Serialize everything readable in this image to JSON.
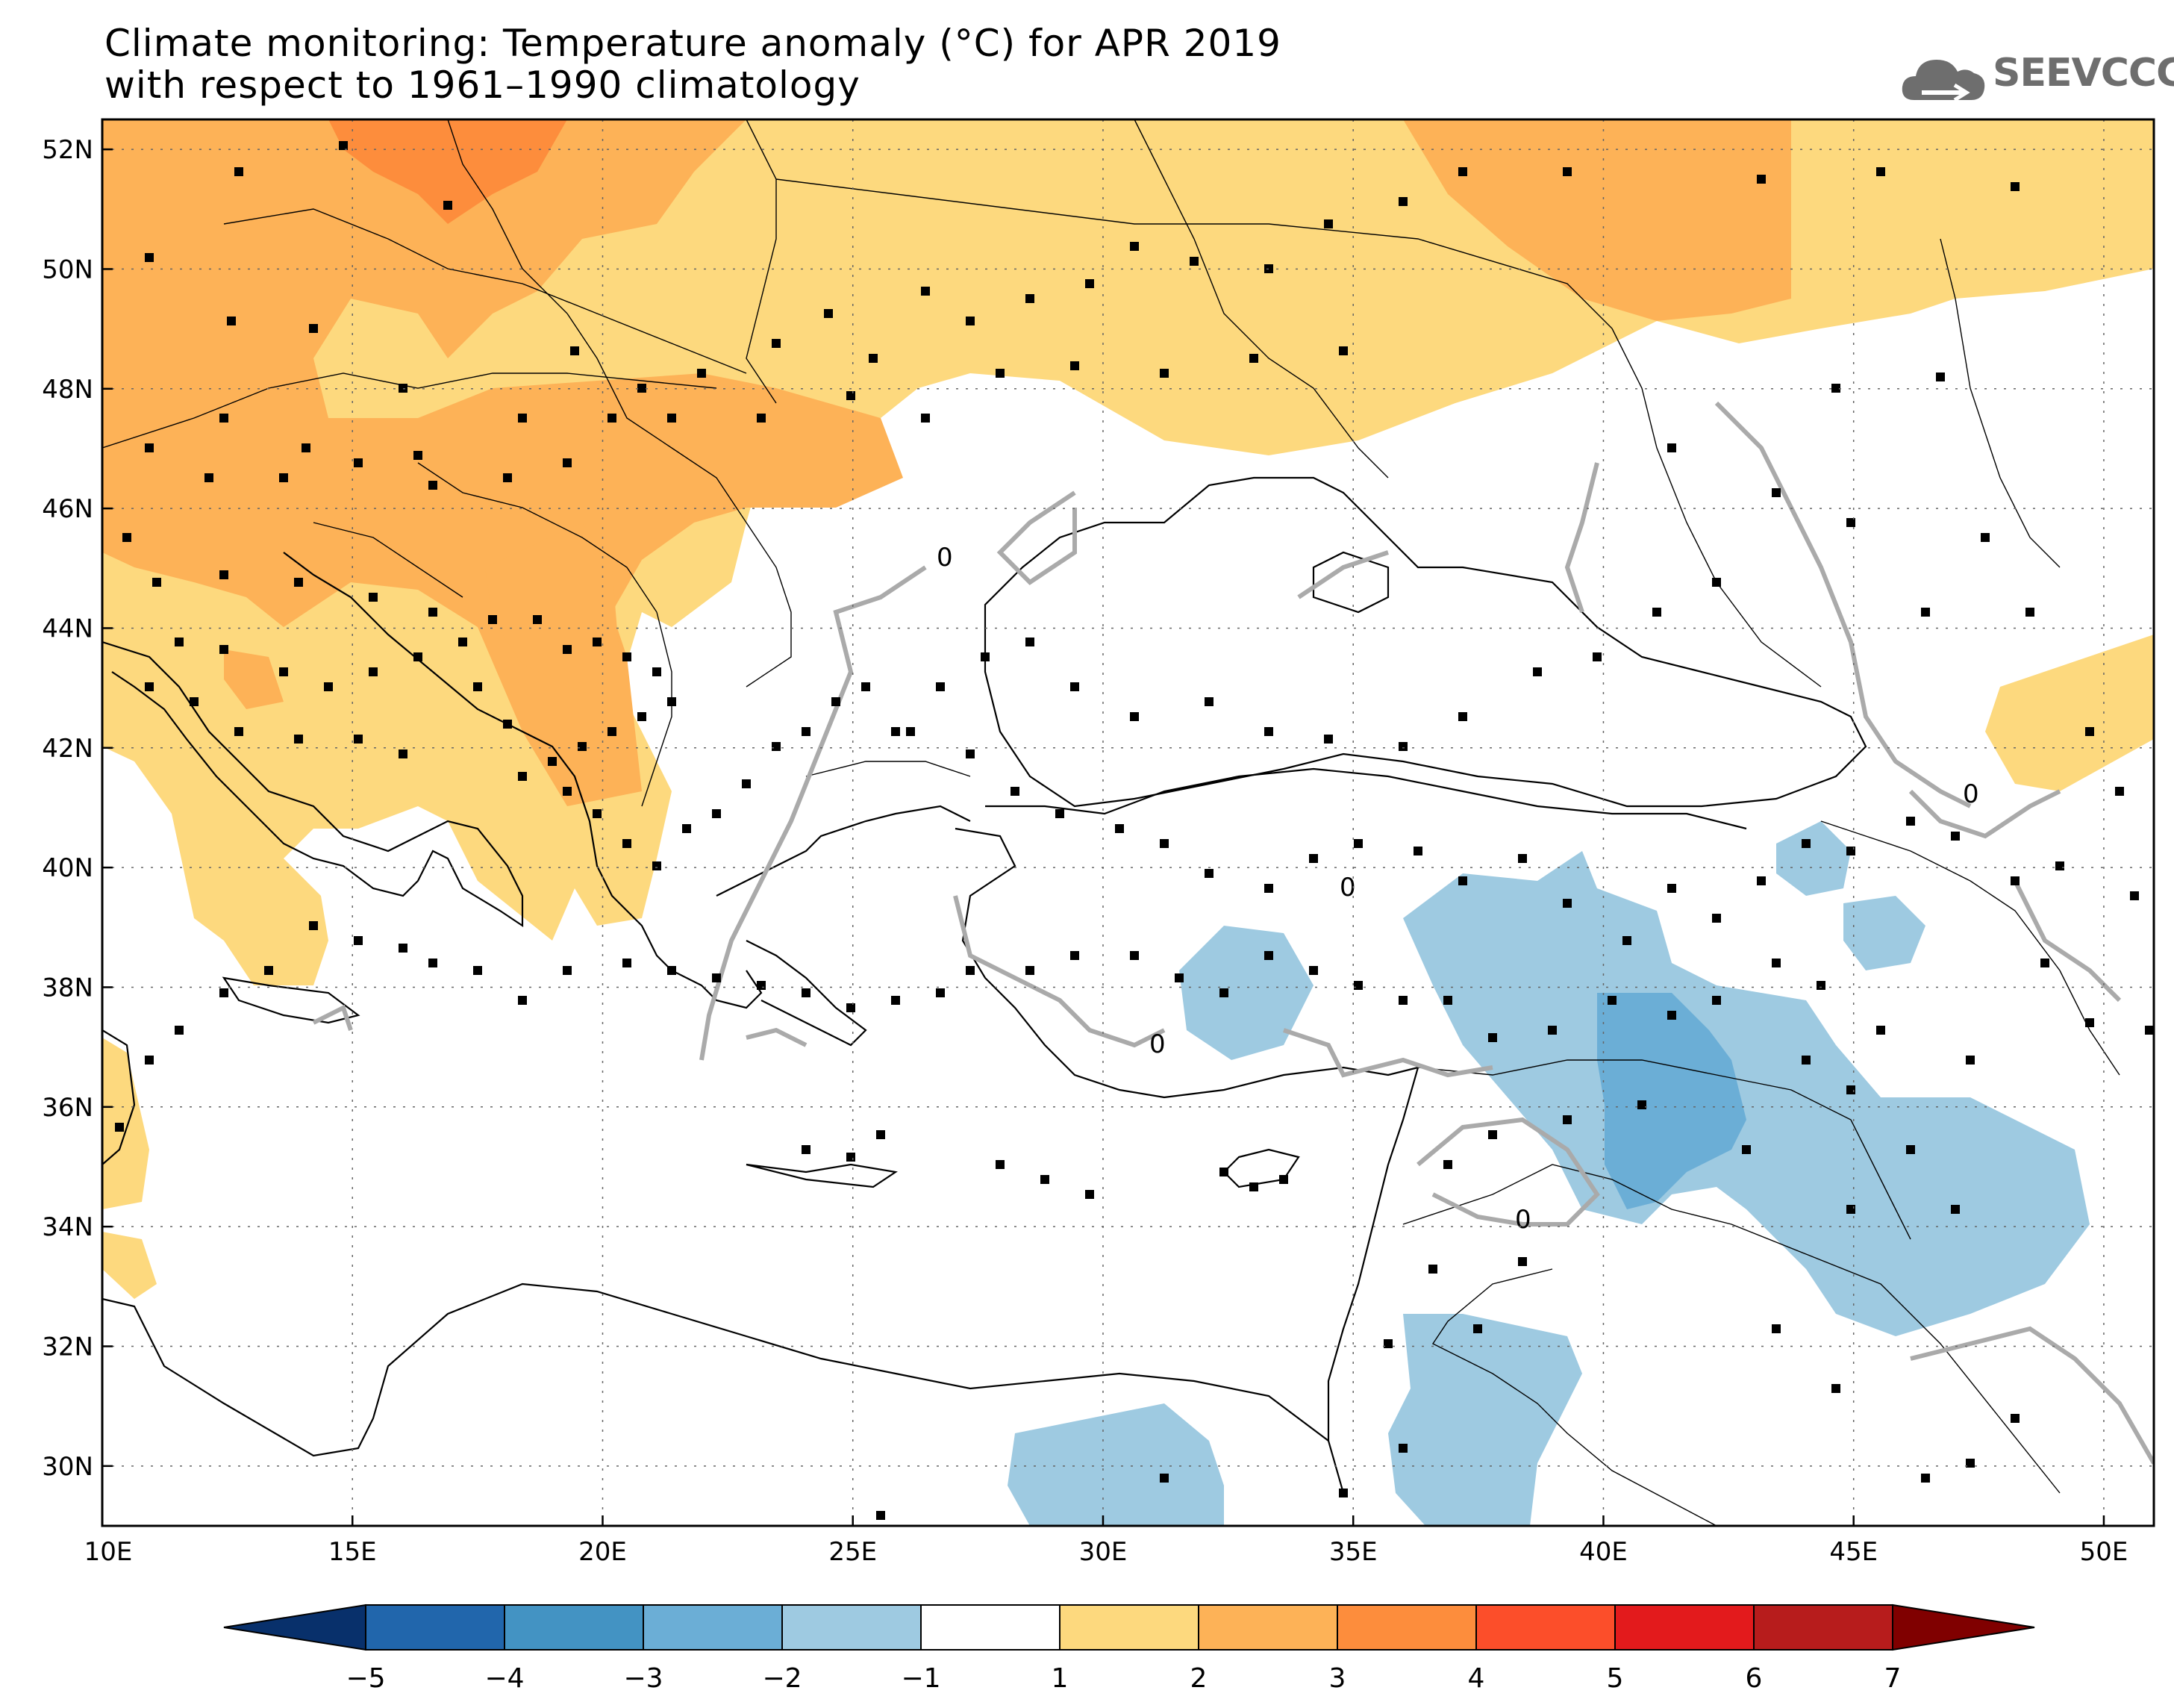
{
  "title": {
    "line1": "Climate monitoring: Temperature anomaly (°C) for APR 2019",
    "line2": "with respect to 1961–1990 climatology"
  },
  "logo": {
    "text": "SEEVCCC",
    "icon": "cloud-icon",
    "color": "#6e6e6e"
  },
  "map": {
    "lon_range": [
      10,
      51
    ],
    "lat_range": [
      29,
      52.5
    ],
    "lon_ticks": [
      "10E",
      "15E",
      "20E",
      "25E",
      "30E",
      "35E",
      "40E",
      "45E",
      "50E"
    ],
    "lat_ticks": [
      "30N",
      "32N",
      "34N",
      "36N",
      "38N",
      "40N",
      "42N",
      "44N",
      "46N",
      "48N",
      "50N",
      "52N"
    ],
    "contour_label": "0",
    "colors": {
      "neg1_2": "#9ecae1",
      "neg2_3": "#6baed6",
      "pos1_2": "#fdd97e",
      "pos2_3": "#fdb257",
      "pos3_4": "#fd8d3c"
    }
  },
  "colorbar": {
    "labels": [
      "−5",
      "−4",
      "−3",
      "−2",
      "−1",
      "1",
      "2",
      "3",
      "4",
      "5",
      "6",
      "7"
    ],
    "colors": [
      "#08306b",
      "#2166ac",
      "#4393c3",
      "#6baed6",
      "#9ecae1",
      "#ffffff",
      "#fdd97e",
      "#fdb257",
      "#fd8d3c",
      "#fc4e2a",
      "#e31a1c",
      "#b71c1c",
      "#800000"
    ]
  }
}
